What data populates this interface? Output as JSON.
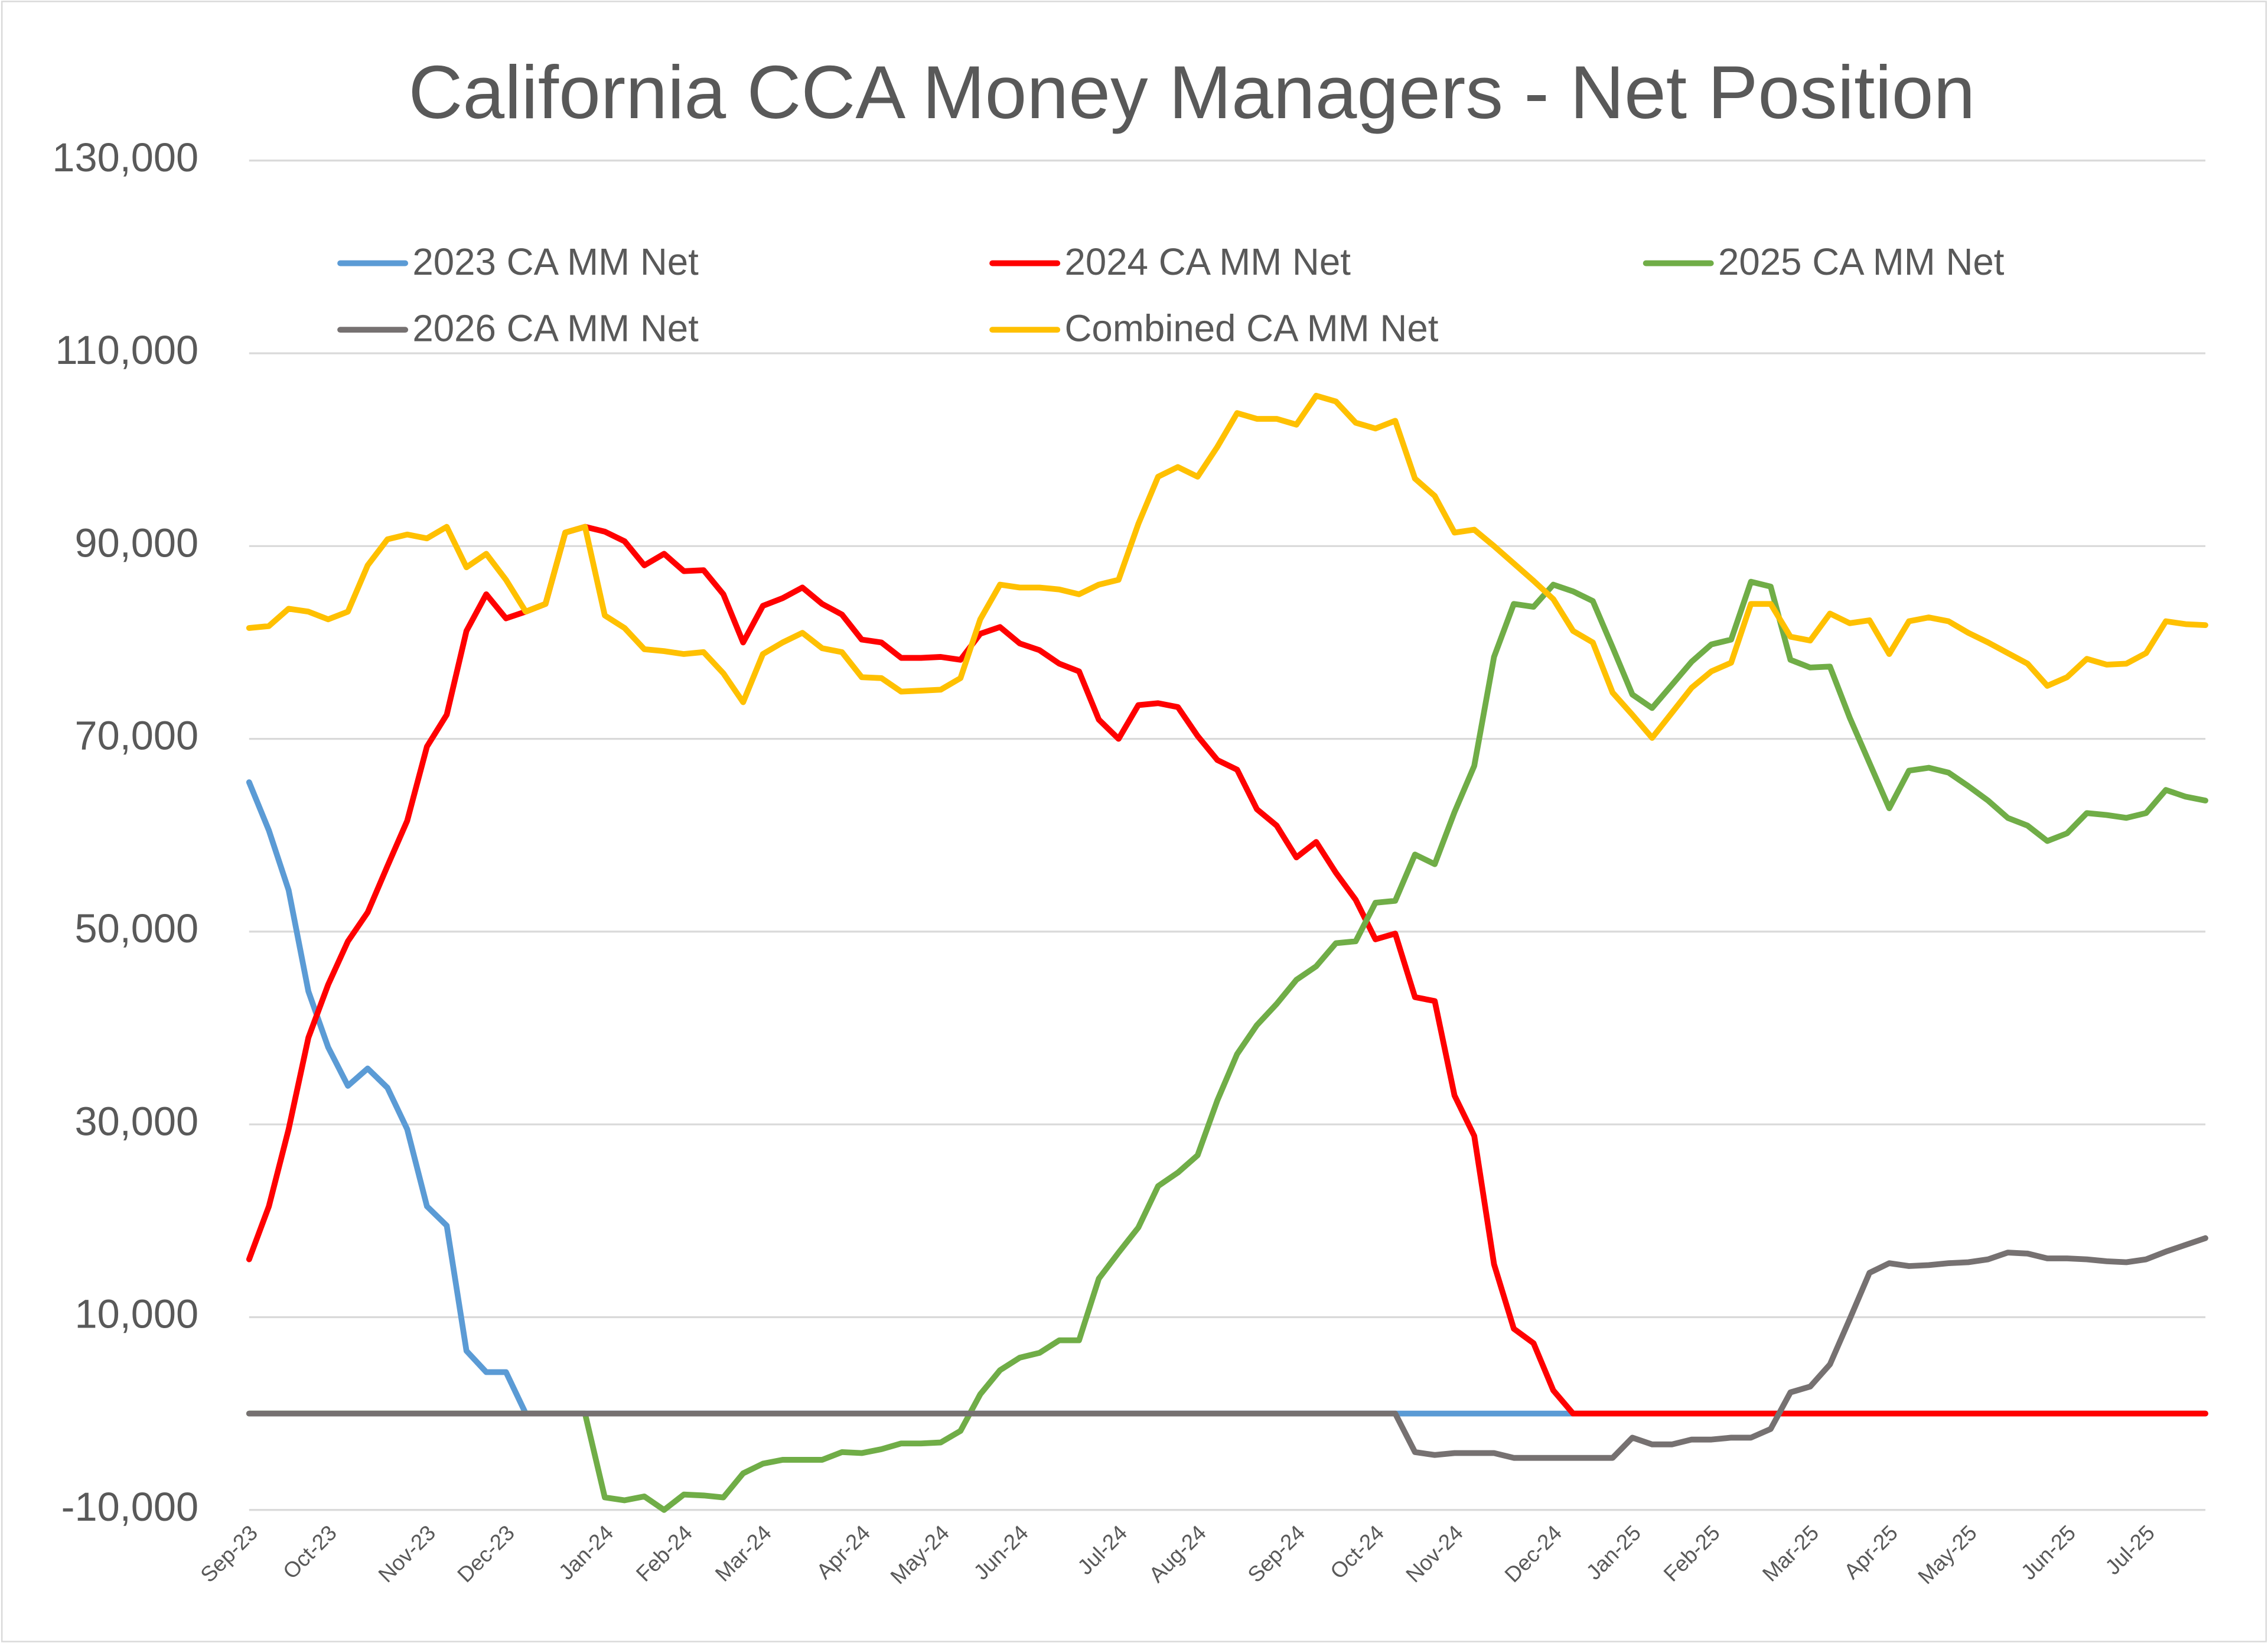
{
  "chart_data": {
    "type": "line",
    "title": "California CCA Money Managers - Net Position",
    "categories": [
      "Sep-23",
      null,
      null,
      null,
      "Oct-23",
      null,
      null,
      null,
      null,
      "Nov-23",
      null,
      null,
      null,
      "Dec-23",
      null,
      null,
      null,
      null,
      "Jan-24",
      null,
      null,
      null,
      "Feb-24",
      null,
      null,
      null,
      "Mar-24",
      null,
      null,
      null,
      null,
      "Apr-24",
      null,
      null,
      null,
      "May-24",
      null,
      null,
      null,
      "Jun-24",
      null,
      null,
      null,
      null,
      "Jul-24",
      null,
      null,
      null,
      "Aug-24",
      null,
      null,
      null,
      null,
      "Sep-24",
      null,
      null,
      null,
      "Oct-24",
      null,
      null,
      null,
      "Nov-24",
      null,
      null,
      null,
      null,
      "Dec-24",
      null,
      null,
      null,
      "Jan-25",
      null,
      null,
      null,
      "Feb-25",
      null,
      null,
      null,
      null,
      "Mar-25",
      null,
      null,
      null,
      "Apr-25",
      null,
      null,
      null,
      "May-25",
      null,
      null,
      null,
      null,
      "Jun-25",
      null,
      null,
      null,
      "Jul-25",
      null,
      null,
      null
    ],
    "series": [
      {
        "name": "2023 CA MM Net",
        "color": "#5b9bd5",
        "values": [
          65500,
          60500,
          54300,
          43800,
          38000,
          34000,
          35800,
          33800,
          29500,
          21500,
          19500,
          6500,
          4300,
          4300,
          0,
          0,
          0,
          0,
          0,
          0,
          0,
          0,
          0,
          0,
          0,
          0,
          0,
          0,
          0,
          0,
          0,
          0,
          0,
          0,
          0,
          0,
          0,
          0,
          0,
          0,
          0,
          0,
          0,
          0,
          0,
          0,
          0,
          0,
          0,
          0,
          0,
          0,
          0,
          0,
          0,
          0,
          0,
          0,
          0,
          0,
          0,
          0,
          0,
          0,
          0,
          0,
          0,
          0,
          0,
          0,
          0,
          0,
          0,
          0,
          0,
          0,
          0,
          0,
          0,
          0,
          0,
          0,
          0,
          0,
          0,
          0,
          0,
          0,
          0,
          0,
          0,
          0,
          0,
          0,
          0,
          0,
          0,
          0,
          0,
          0
        ]
      },
      {
        "name": "2024 CA MM Net",
        "color": "#ff0000",
        "values": [
          16000,
          21500,
          29500,
          39000,
          44500,
          49000,
          52000,
          56800,
          61500,
          69200,
          72500,
          81200,
          85000,
          82500,
          83200,
          84000,
          91400,
          92000,
          91500,
          90500,
          88000,
          89200,
          87400,
          87500,
          85000,
          80000,
          83800,
          84600,
          85700,
          84000,
          82900,
          80300,
          80000,
          78400,
          78400,
          78500,
          78200,
          80900,
          81600,
          79900,
          79200,
          77800,
          77000,
          72000,
          70000,
          73500,
          73700,
          73300,
          70300,
          67800,
          66800,
          62700,
          61000,
          57700,
          59300,
          56100,
          53300,
          49200,
          49800,
          43200,
          42800,
          33000,
          28800,
          15500,
          8800,
          7300,
          2400,
          0,
          0,
          0,
          0,
          0,
          0,
          0,
          0,
          0,
          0,
          0,
          0,
          0,
          0,
          0,
          0,
          0,
          0,
          0,
          0,
          0,
          0,
          0,
          0,
          0,
          0,
          0,
          0,
          0,
          0,
          0,
          0,
          0
        ]
      },
      {
        "name": "2025 CA MM Net",
        "color": "#70ad47",
        "values": [
          0,
          0,
          0,
          0,
          0,
          0,
          0,
          0,
          0,
          0,
          0,
          0,
          0,
          0,
          0,
          0,
          0,
          0,
          -8700,
          -9000,
          -8600,
          -10000,
          -8400,
          -8500,
          -8700,
          -6200,
          -5200,
          -4800,
          -4800,
          -4800,
          -4000,
          -4100,
          -3700,
          -3100,
          -3100,
          -3000,
          -1800,
          2000,
          4500,
          5800,
          6300,
          7600,
          7600,
          14000,
          16700,
          19300,
          23600,
          25000,
          26800,
          32500,
          37300,
          40300,
          42500,
          45000,
          46400,
          48800,
          49000,
          53000,
          53200,
          58000,
          57000,
          62400,
          67200,
          78500,
          84000,
          83700,
          86000,
          85300,
          84300,
          79500,
          74600,
          73200,
          75600,
          78000,
          79800,
          80300,
          86300,
          85800,
          78200,
          77400,
          77500,
          72200,
          67500,
          62800,
          66700,
          67000,
          66500,
          65100,
          63600,
          61800,
          61000,
          59400,
          60200,
          62300,
          62100,
          61800,
          62300,
          64700,
          64000,
          63600
        ]
      },
      {
        "name": "2026 CA MM Net",
        "color": "#767171",
        "values": [
          0,
          0,
          0,
          0,
          0,
          0,
          0,
          0,
          0,
          0,
          0,
          0,
          0,
          0,
          0,
          0,
          0,
          0,
          0,
          0,
          0,
          0,
          0,
          0,
          0,
          0,
          0,
          0,
          0,
          0,
          0,
          0,
          0,
          0,
          0,
          0,
          0,
          0,
          0,
          0,
          0,
          0,
          0,
          0,
          0,
          0,
          0,
          0,
          0,
          0,
          0,
          0,
          0,
          0,
          0,
          0,
          0,
          0,
          0,
          -4000,
          -4300,
          -4100,
          -4100,
          -4100,
          -4600,
          -4600,
          -4600,
          -4600,
          -4600,
          -4600,
          -2500,
          -3200,
          -3200,
          -2700,
          -2700,
          -2500,
          -2500,
          -1600,
          2200,
          2800,
          5100,
          9800,
          14600,
          15600,
          15300,
          15400,
          15600,
          15700,
          16000,
          16700,
          16600,
          16100,
          16100,
          16000,
          15800,
          15700,
          16000,
          16800,
          17500,
          18200
        ]
      },
      {
        "name": "Combined CA MM Net",
        "color": "#ffc000",
        "values": [
          81500,
          81700,
          83500,
          83200,
          82400,
          83200,
          88000,
          90700,
          91200,
          90800,
          92000,
          87800,
          89200,
          86500,
          83200,
          84000,
          91400,
          92000,
          82800,
          81500,
          79300,
          79100,
          78800,
          79000,
          76800,
          73800,
          78800,
          80000,
          81000,
          79400,
          79000,
          76400,
          76300,
          74900,
          75000,
          75100,
          76300,
          82400,
          86000,
          85700,
          85700,
          85500,
          85000,
          86000,
          86500,
          92300,
          97200,
          98200,
          97200,
          100300,
          103800,
          103200,
          103200,
          102600,
          105600,
          105000,
          102800,
          102200,
          103000,
          97000,
          95200,
          91400,
          91700,
          90000,
          88200,
          86400,
          84500,
          81200,
          80000,
          74800,
          72500,
          70100,
          72700,
          75300,
          77000,
          77900,
          84000,
          84000,
          80600,
          80200,
          83000,
          82000,
          82300,
          78800,
          82200,
          82600,
          82200,
          81000,
          80000,
          78900,
          77800,
          75500,
          76400,
          78300,
          77700,
          77800,
          78900,
          82200,
          81900,
          81800
        ]
      }
    ],
    "ylim": [
      -10000,
      130000
    ],
    "yticks": [
      {
        "value": -10000,
        "label": "-10,000"
      },
      {
        "value": 10000,
        "label": "10,000"
      },
      {
        "value": 30000,
        "label": "30,000"
      },
      {
        "value": 50000,
        "label": "50,000"
      },
      {
        "value": 70000,
        "label": "70,000"
      },
      {
        "value": 90000,
        "label": "90,000"
      },
      {
        "value": 110000,
        "label": "110,000"
      },
      {
        "value": 130000,
        "label": "130,000"
      }
    ],
    "grid": true
  }
}
